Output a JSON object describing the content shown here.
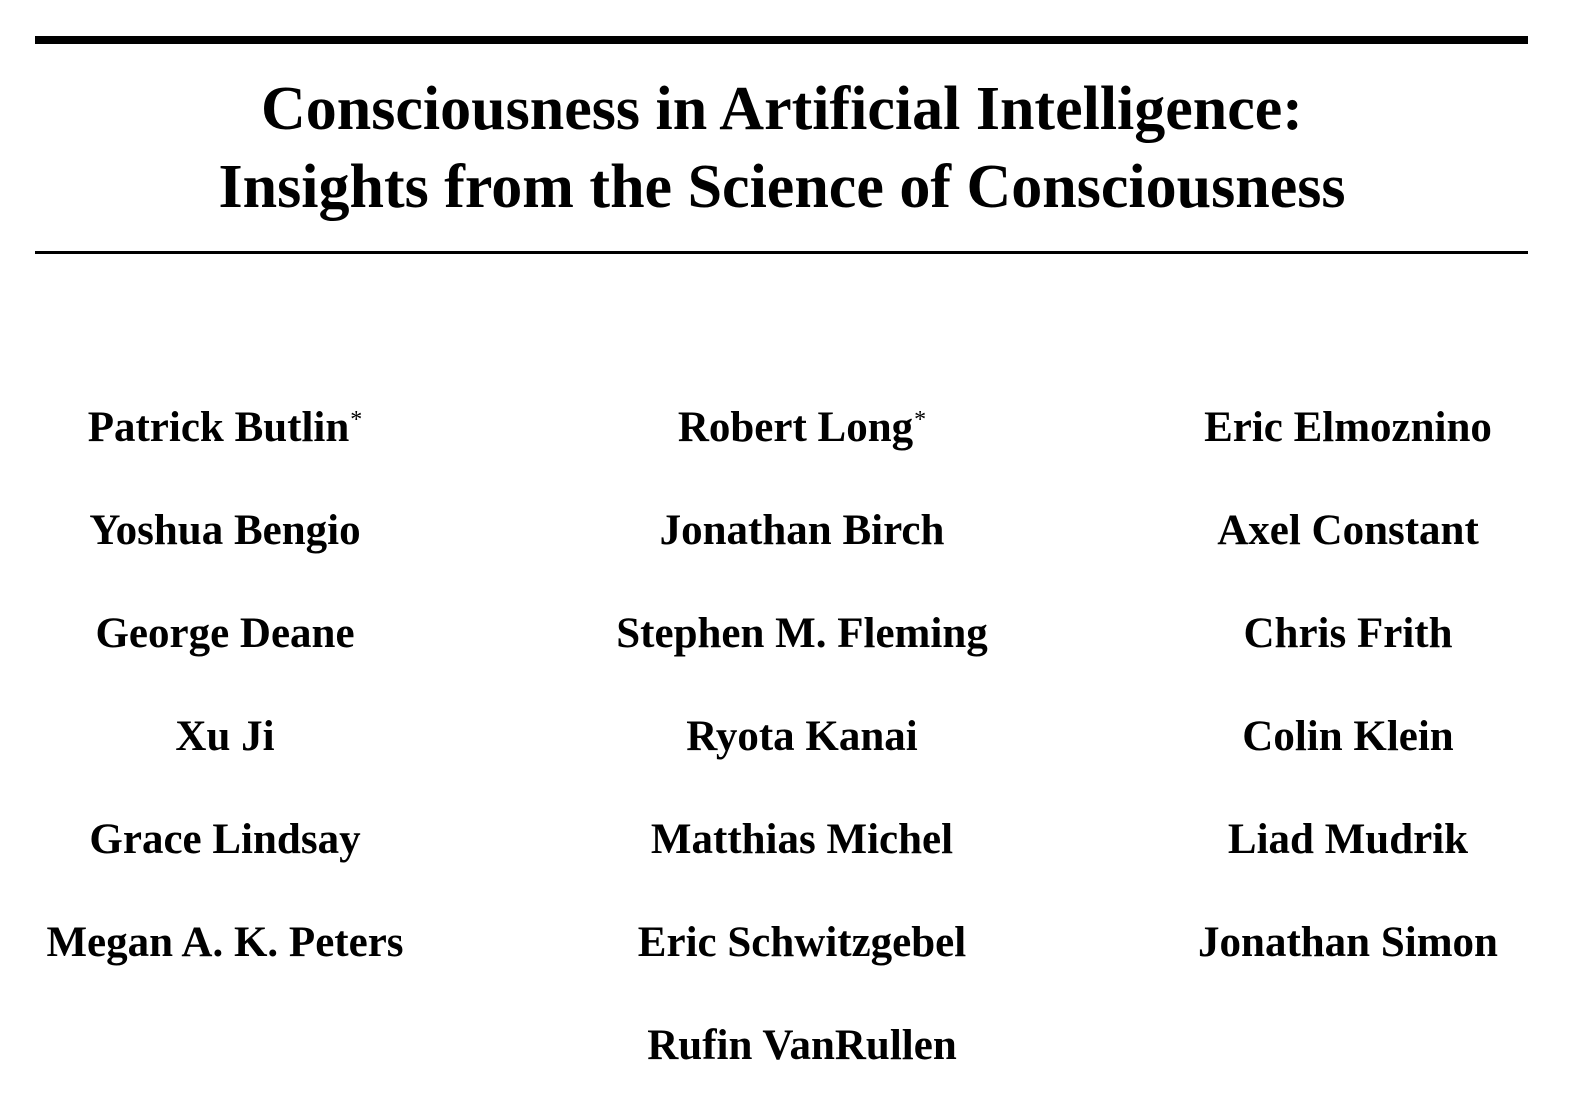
{
  "paper": {
    "title_line1": "Consciousness in Artificial Intelligence:",
    "title_line2": "Insights from the Science of Consciousness"
  },
  "authors": [
    [
      "Patrick Butlin",
      "Robert Long",
      "Eric Elmoznino"
    ],
    [
      "Yoshua Bengio",
      "Jonathan Birch",
      "Axel Constant"
    ],
    [
      "George Deane",
      "Stephen M. Fleming",
      "Chris Frith"
    ],
    [
      "Xu Ji",
      "Ryota Kanai",
      "Colin Klein"
    ],
    [
      "Grace Lindsay",
      "Matthias Michel",
      "Liad Mudrik"
    ],
    [
      "Megan A. K. Peters",
      "Eric Schwitzgebel",
      "Jonathan Simon"
    ],
    [
      "",
      "Rufin VanRullen",
      ""
    ]
  ],
  "equal_contribution_mark": "*"
}
